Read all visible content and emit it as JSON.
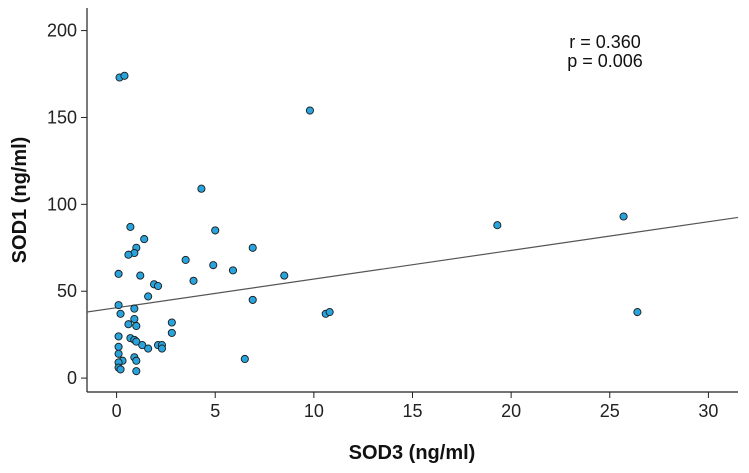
{
  "chart_data": {
    "type": "scatter",
    "title": "",
    "xlabel": "SOD3 (ng/ml)",
    "ylabel": "SOD1 (ng/ml)",
    "xlim": [
      -1.5,
      31.5
    ],
    "ylim": [
      -8,
      213
    ],
    "x_ticks": [
      0,
      5,
      10,
      15,
      20,
      25,
      30
    ],
    "x_tick_labels": [
      "0",
      "5",
      "10",
      "15",
      "20",
      "25",
      "30"
    ],
    "y_ticks": [
      0,
      50,
      100,
      150,
      200
    ],
    "y_tick_labels": [
      "0",
      "50",
      "100",
      "150",
      "200"
    ],
    "annotations": [
      "r = 0.360",
      "p = 0.006"
    ],
    "marker_color": "#29a3dc",
    "marker_edge_color": "#1a1a1a",
    "fit_line": {
      "intercept": 40.5,
      "slope": 1.65,
      "color": "#555555"
    },
    "points": [
      {
        "x": 0.15,
        "y": 173
      },
      {
        "x": 0.4,
        "y": 174
      },
      {
        "x": 9.8,
        "y": 154
      },
      {
        "x": 4.3,
        "y": 109
      },
      {
        "x": 0.7,
        "y": 87
      },
      {
        "x": 5.0,
        "y": 85
      },
      {
        "x": 1.4,
        "y": 80
      },
      {
        "x": 1.0,
        "y": 75
      },
      {
        "x": 0.9,
        "y": 72
      },
      {
        "x": 0.6,
        "y": 71
      },
      {
        "x": 6.9,
        "y": 75
      },
      {
        "x": 3.5,
        "y": 68
      },
      {
        "x": 4.9,
        "y": 65
      },
      {
        "x": 5.9,
        "y": 62
      },
      {
        "x": 0.1,
        "y": 60
      },
      {
        "x": 1.2,
        "y": 59
      },
      {
        "x": 8.5,
        "y": 59
      },
      {
        "x": 3.9,
        "y": 56
      },
      {
        "x": 1.9,
        "y": 54
      },
      {
        "x": 2.1,
        "y": 53
      },
      {
        "x": 1.6,
        "y": 47
      },
      {
        "x": 6.9,
        "y": 45
      },
      {
        "x": 0.1,
        "y": 42
      },
      {
        "x": 0.9,
        "y": 40
      },
      {
        "x": 10.6,
        "y": 37
      },
      {
        "x": 10.8,
        "y": 38
      },
      {
        "x": 26.4,
        "y": 38
      },
      {
        "x": 0.2,
        "y": 37
      },
      {
        "x": 0.9,
        "y": 34
      },
      {
        "x": 0.6,
        "y": 31
      },
      {
        "x": 1.0,
        "y": 30
      },
      {
        "x": 2.8,
        "y": 32
      },
      {
        "x": 2.8,
        "y": 26
      },
      {
        "x": 0.1,
        "y": 24
      },
      {
        "x": 0.7,
        "y": 23
      },
      {
        "x": 0.9,
        "y": 22
      },
      {
        "x": 1.0,
        "y": 21
      },
      {
        "x": 1.3,
        "y": 19
      },
      {
        "x": 2.1,
        "y": 19
      },
      {
        "x": 2.3,
        "y": 19
      },
      {
        "x": 0.1,
        "y": 18
      },
      {
        "x": 1.6,
        "y": 17
      },
      {
        "x": 2.3,
        "y": 17
      },
      {
        "x": 0.1,
        "y": 14
      },
      {
        "x": 0.9,
        "y": 12
      },
      {
        "x": 1.0,
        "y": 10
      },
      {
        "x": 0.3,
        "y": 10
      },
      {
        "x": 0.1,
        "y": 9
      },
      {
        "x": 6.5,
        "y": 11
      },
      {
        "x": 0.1,
        "y": 6
      },
      {
        "x": 0.2,
        "y": 5
      },
      {
        "x": 1.0,
        "y": 4
      },
      {
        "x": 19.3,
        "y": 88
      },
      {
        "x": 25.7,
        "y": 93
      }
    ]
  }
}
